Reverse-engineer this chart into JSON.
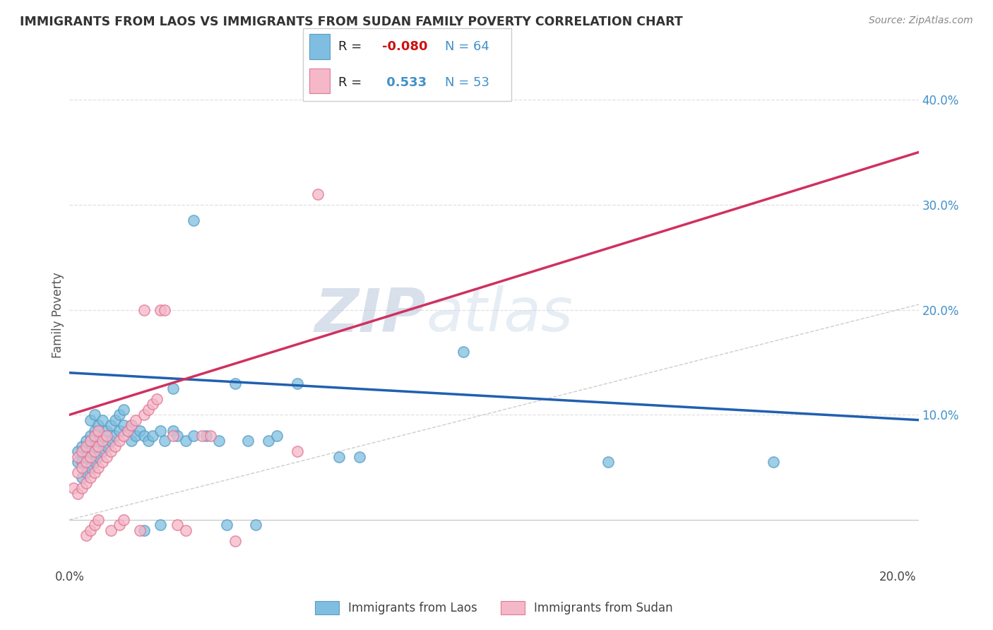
{
  "title": "IMMIGRANTS FROM LAOS VS IMMIGRANTS FROM SUDAN FAMILY POVERTY CORRELATION CHART",
  "source": "Source: ZipAtlas.com",
  "ylabel": "Family Poverty",
  "xlim": [
    0.0,
    0.205
  ],
  "ylim": [
    -0.045,
    0.435
  ],
  "plot_ylim": [
    -0.045,
    0.435
  ],
  "y_tick_pos": [
    0.1,
    0.2,
    0.3,
    0.4
  ],
  "y_tick_labs": [
    "10.0%",
    "20.0%",
    "30.0%",
    "40.0%"
  ],
  "x_tick_pos": [
    0.0,
    0.1,
    0.2
  ],
  "x_tick_labs": [
    "0.0%",
    "",
    "20.0%"
  ],
  "laos_color": "#7fbee0",
  "laos_edge_color": "#5a9ec5",
  "sudan_color": "#f5b8c8",
  "sudan_edge_color": "#e07898",
  "laos_line_color": "#2060b0",
  "sudan_line_color": "#d03060",
  "diagonal_color": "#c8c8c8",
  "R_laos": -0.08,
  "N_laos": 64,
  "R_sudan": 0.533,
  "N_sudan": 53,
  "watermark_zip": "ZIP",
  "watermark_atlas": "atlas",
  "legend_label_laos": "Immigrants from Laos",
  "legend_label_sudan": "Immigrants from Sudan",
  "laos_points": [
    [
      0.002,
      0.055
    ],
    [
      0.002,
      0.065
    ],
    [
      0.003,
      0.04
    ],
    [
      0.003,
      0.055
    ],
    [
      0.003,
      0.07
    ],
    [
      0.004,
      0.045
    ],
    [
      0.004,
      0.06
    ],
    [
      0.004,
      0.075
    ],
    [
      0.005,
      0.05
    ],
    [
      0.005,
      0.065
    ],
    [
      0.005,
      0.08
    ],
    [
      0.005,
      0.095
    ],
    [
      0.006,
      0.055
    ],
    [
      0.006,
      0.07
    ],
    [
      0.006,
      0.085
    ],
    [
      0.006,
      0.1
    ],
    [
      0.007,
      0.06
    ],
    [
      0.007,
      0.075
    ],
    [
      0.007,
      0.09
    ],
    [
      0.008,
      0.065
    ],
    [
      0.008,
      0.08
    ],
    [
      0.008,
      0.095
    ],
    [
      0.009,
      0.07
    ],
    [
      0.009,
      0.085
    ],
    [
      0.01,
      0.075
    ],
    [
      0.01,
      0.09
    ],
    [
      0.011,
      0.08
    ],
    [
      0.011,
      0.095
    ],
    [
      0.012,
      0.085
    ],
    [
      0.012,
      0.1
    ],
    [
      0.013,
      0.09
    ],
    [
      0.013,
      0.105
    ],
    [
      0.014,
      0.085
    ],
    [
      0.015,
      0.075
    ],
    [
      0.015,
      0.09
    ],
    [
      0.016,
      0.08
    ],
    [
      0.017,
      0.085
    ],
    [
      0.018,
      0.08
    ],
    [
      0.018,
      -0.01
    ],
    [
      0.019,
      0.075
    ],
    [
      0.02,
      0.08
    ],
    [
      0.022,
      -0.005
    ],
    [
      0.022,
      0.085
    ],
    [
      0.023,
      0.075
    ],
    [
      0.025,
      0.085
    ],
    [
      0.025,
      0.125
    ],
    [
      0.026,
      0.08
    ],
    [
      0.028,
      0.075
    ],
    [
      0.03,
      0.08
    ],
    [
      0.03,
      0.285
    ],
    [
      0.033,
      0.08
    ],
    [
      0.036,
      0.075
    ],
    [
      0.038,
      -0.005
    ],
    [
      0.04,
      0.13
    ],
    [
      0.043,
      0.075
    ],
    [
      0.045,
      -0.005
    ],
    [
      0.048,
      0.075
    ],
    [
      0.05,
      0.08
    ],
    [
      0.055,
      0.13
    ],
    [
      0.065,
      0.06
    ],
    [
      0.07,
      0.06
    ],
    [
      0.095,
      0.16
    ],
    [
      0.13,
      0.055
    ],
    [
      0.17,
      0.055
    ]
  ],
  "sudan_points": [
    [
      0.001,
      0.03
    ],
    [
      0.002,
      0.025
    ],
    [
      0.002,
      0.045
    ],
    [
      0.002,
      0.06
    ],
    [
      0.003,
      0.03
    ],
    [
      0.003,
      0.05
    ],
    [
      0.003,
      0.065
    ],
    [
      0.004,
      0.035
    ],
    [
      0.004,
      0.055
    ],
    [
      0.004,
      0.07
    ],
    [
      0.004,
      -0.015
    ],
    [
      0.005,
      0.04
    ],
    [
      0.005,
      0.06
    ],
    [
      0.005,
      0.075
    ],
    [
      0.005,
      -0.01
    ],
    [
      0.006,
      0.045
    ],
    [
      0.006,
      0.065
    ],
    [
      0.006,
      0.08
    ],
    [
      0.006,
      -0.005
    ],
    [
      0.007,
      0.05
    ],
    [
      0.007,
      0.07
    ],
    [
      0.007,
      0.085
    ],
    [
      0.007,
      0.0
    ],
    [
      0.008,
      0.055
    ],
    [
      0.008,
      0.075
    ],
    [
      0.009,
      0.06
    ],
    [
      0.009,
      0.08
    ],
    [
      0.01,
      0.065
    ],
    [
      0.01,
      -0.01
    ],
    [
      0.011,
      0.07
    ],
    [
      0.012,
      0.075
    ],
    [
      0.012,
      -0.005
    ],
    [
      0.013,
      0.08
    ],
    [
      0.013,
      0.0
    ],
    [
      0.014,
      0.085
    ],
    [
      0.015,
      0.09
    ],
    [
      0.016,
      0.095
    ],
    [
      0.017,
      -0.01
    ],
    [
      0.018,
      0.1
    ],
    [
      0.018,
      0.2
    ],
    [
      0.019,
      0.105
    ],
    [
      0.02,
      0.11
    ],
    [
      0.021,
      0.115
    ],
    [
      0.022,
      0.2
    ],
    [
      0.023,
      0.2
    ],
    [
      0.025,
      0.08
    ],
    [
      0.026,
      -0.005
    ],
    [
      0.028,
      -0.01
    ],
    [
      0.032,
      0.08
    ],
    [
      0.034,
      0.08
    ],
    [
      0.04,
      -0.02
    ],
    [
      0.055,
      0.065
    ],
    [
      0.06,
      0.31
    ]
  ]
}
